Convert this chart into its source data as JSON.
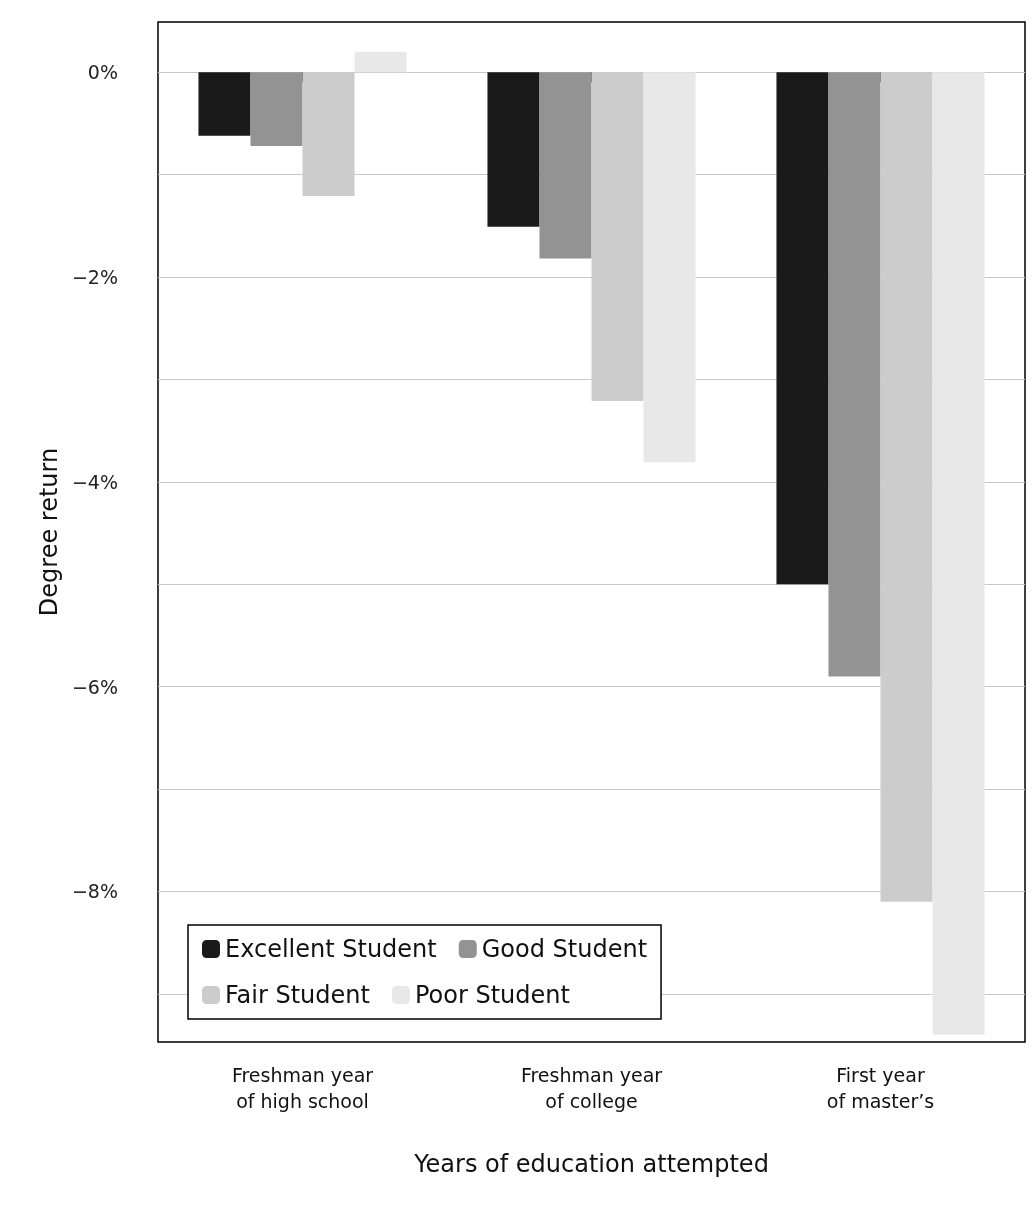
{
  "chart_data": {
    "type": "bar",
    "xlabel": "Years of education attempted",
    "ylabel": "Degree return",
    "categories": [
      "Freshman year\nof high school",
      "Freshman year\nof college",
      "First year\nof master’s"
    ],
    "series": [
      {
        "name": "Excellent Student",
        "color": "#1a1a1a",
        "values": [
          -0.62,
          -1.51,
          -5.0
        ]
      },
      {
        "name": "Good Student",
        "color": "#939393",
        "values": [
          -0.72,
          -1.82,
          -5.9
        ]
      },
      {
        "name": "Fair Student",
        "color": "#cccccc",
        "values": [
          -1.21,
          -3.21,
          -8.1
        ]
      },
      {
        "name": "Poor Student",
        "color": "#e8e8e8",
        "values": [
          0.2,
          -3.81,
          -9.4
        ]
      }
    ],
    "ylim": [
      -9.47,
      0.49
    ],
    "yticks": [
      {
        "value": -9,
        "label": null
      },
      {
        "value": -8,
        "label": "−8%"
      },
      {
        "value": -7,
        "label": null
      },
      {
        "value": -6,
        "label": "−6%"
      },
      {
        "value": -5,
        "label": null
      },
      {
        "value": -4,
        "label": "−4%"
      },
      {
        "value": -3,
        "label": null
      },
      {
        "value": -2,
        "label": "−2%"
      },
      {
        "value": -1,
        "label": null
      },
      {
        "value": 0,
        "label": "0%"
      }
    ],
    "grid": "y",
    "legend": "bottom left"
  }
}
